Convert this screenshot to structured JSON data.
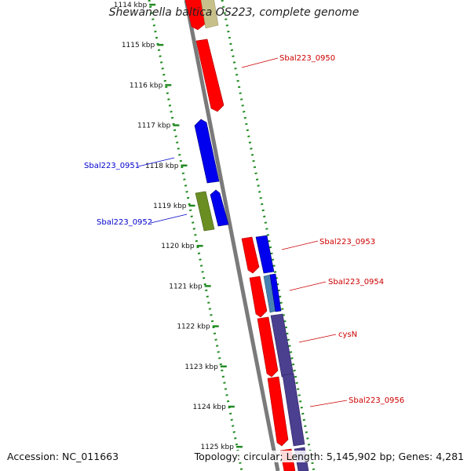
{
  "title": "Shewanella baltica OS223, complete genome",
  "footer": {
    "accession": "Accession: NC_011663",
    "summary": "Topology: circular; Length: 5,145,902 bp; Genes: 4,281"
  },
  "ticks": [
    {
      "label": "1114 kbp",
      "kbp": 1114
    },
    {
      "label": "1115 kbp",
      "kbp": 1115
    },
    {
      "label": "1116 kbp",
      "kbp": 1116
    },
    {
      "label": "1117 kbp",
      "kbp": 1117
    },
    {
      "label": "1118 kbp",
      "kbp": 1118
    },
    {
      "label": "1119 kbp",
      "kbp": 1119
    },
    {
      "label": "1120 kbp",
      "kbp": 1120
    },
    {
      "label": "1121 kbp",
      "kbp": 1121
    },
    {
      "label": "1122 kbp",
      "kbp": 1122
    },
    {
      "label": "1123 kbp",
      "kbp": 1123
    },
    {
      "label": "1124 kbp",
      "kbp": 1124
    },
    {
      "label": "1125 kbp",
      "kbp": 1125
    }
  ],
  "genes": [
    {
      "name": "Sbal223_0950",
      "label_color": "#cc0000"
    },
    {
      "name": "Sbal223_0951",
      "label_color": "#0000cc"
    },
    {
      "name": "Sbal223_0952",
      "label_color": "#0000cc"
    },
    {
      "name": "Sbal223_0953",
      "label_color": "#cc0000"
    },
    {
      "name": "Sbal223_0954",
      "label_color": "#cc0000"
    },
    {
      "name": "cysN",
      "label_color": "#cc0000"
    },
    {
      "name": "Sbal223_0956",
      "label_color": "#cc0000"
    }
  ],
  "colors": {
    "forward_gene": "#ff0000",
    "reverse_gene": "#0000ee",
    "olive_gene": "#6b8e23",
    "purple_gene": "#4b3f8f",
    "tan_gene": "#c8c08a",
    "backbone": "#808080",
    "tick_dots": "#228b22"
  }
}
